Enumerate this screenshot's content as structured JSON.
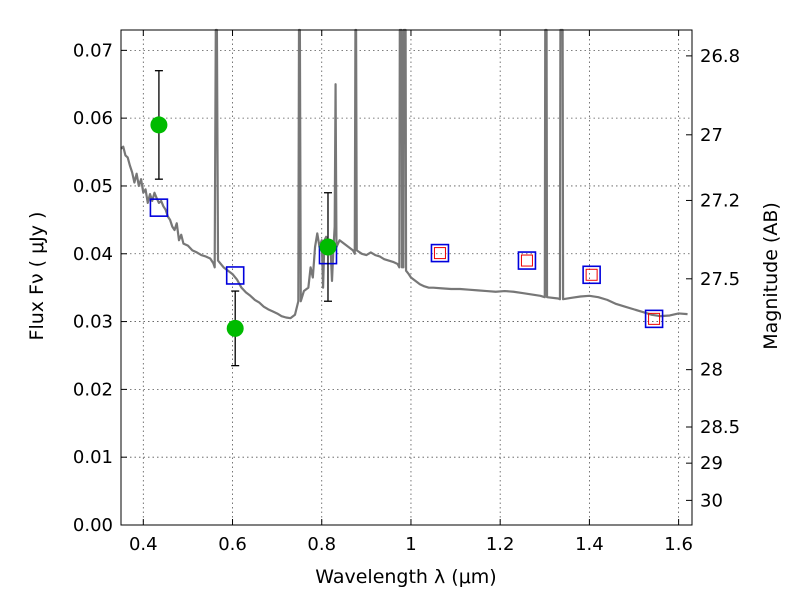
{
  "chart_data": {
    "type": "scatter",
    "xlabel": "Wavelength  λ (μm)",
    "ylabel": "Flux  Fν  ( μJy )",
    "ylabel_right": "Magnitude (AB)",
    "xlim": [
      0.35,
      1.63
    ],
    "ylim": [
      0.0,
      0.073
    ],
    "grid": true,
    "x_ticks": [
      0.4,
      0.6,
      0.8,
      1.0,
      1.2,
      1.4,
      1.6
    ],
    "x_tick_labels": [
      "0.4",
      "0.6",
      "0.8",
      "1",
      "1.2",
      "1.4",
      "1.6"
    ],
    "y_ticks": [
      0.0,
      0.01,
      0.02,
      0.03,
      0.04,
      0.05,
      0.06,
      0.07
    ],
    "y_tick_labels": [
      "0.00",
      "0.01",
      "0.02",
      "0.03",
      "0.04",
      "0.05",
      "0.06",
      "0.07"
    ],
    "right_ticks": [
      {
        "mag": 26.8,
        "label": "26.8"
      },
      {
        "mag": 27.0,
        "label": "27"
      },
      {
        "mag": 27.2,
        "label": "27.2"
      },
      {
        "mag": 27.5,
        "label": "27.5"
      },
      {
        "mag": 28.0,
        "label": "28"
      },
      {
        "mag": 28.5,
        "label": "28.5"
      },
      {
        "mag": 29.0,
        "label": "29"
      },
      {
        "mag": 30.0,
        "label": "30"
      }
    ],
    "colors": {
      "model": "#777777",
      "observed": "#00bb00",
      "errorbar": "#000000",
      "model_band": "#0000dd",
      "model_band_inner": "#ee0000"
    },
    "observed_points": [
      {
        "x": 0.435,
        "y": 0.059,
        "yerr_low": 0.051,
        "yerr_high": 0.067
      },
      {
        "x": 0.606,
        "y": 0.029,
        "yerr_low": 0.0235,
        "yerr_high": 0.0345
      },
      {
        "x": 0.814,
        "y": 0.041,
        "yerr_low": 0.033,
        "yerr_high": 0.049
      }
    ],
    "model_band_points": [
      {
        "x": 0.435,
        "y": 0.0468,
        "inner": false
      },
      {
        "x": 0.606,
        "y": 0.0368,
        "inner": false
      },
      {
        "x": 0.814,
        "y": 0.0398,
        "inner": false
      },
      {
        "x": 1.065,
        "y": 0.0401,
        "inner": true
      },
      {
        "x": 1.26,
        "y": 0.039,
        "inner": true
      },
      {
        "x": 1.405,
        "y": 0.0369,
        "inner": true
      },
      {
        "x": 1.545,
        "y": 0.0304,
        "inner": true
      }
    ],
    "model_spectrum": [
      [
        0.35,
        0.0555
      ],
      [
        0.355,
        0.0558
      ],
      [
        0.36,
        0.0545
      ],
      [
        0.365,
        0.0542
      ],
      [
        0.37,
        0.053
      ],
      [
        0.375,
        0.052
      ],
      [
        0.38,
        0.0505
      ],
      [
        0.385,
        0.0518
      ],
      [
        0.39,
        0.05
      ],
      [
        0.395,
        0.051
      ],
      [
        0.4,
        0.049
      ],
      [
        0.405,
        0.0495
      ],
      [
        0.41,
        0.0475
      ],
      [
        0.415,
        0.0488
      ],
      [
        0.42,
        0.0478
      ],
      [
        0.425,
        0.049
      ],
      [
        0.43,
        0.0482
      ],
      [
        0.435,
        0.0475
      ],
      [
        0.44,
        0.0478
      ],
      [
        0.445,
        0.047
      ],
      [
        0.45,
        0.0465
      ],
      [
        0.455,
        0.0455
      ],
      [
        0.46,
        0.045
      ],
      [
        0.465,
        0.044
      ],
      [
        0.47,
        0.0435
      ],
      [
        0.475,
        0.0445
      ],
      [
        0.48,
        0.042
      ],
      [
        0.485,
        0.0428
      ],
      [
        0.49,
        0.0415
      ],
      [
        0.5,
        0.0412
      ],
      [
        0.51,
        0.0405
      ],
      [
        0.52,
        0.0402
      ],
      [
        0.53,
        0.0398
      ],
      [
        0.54,
        0.0396
      ],
      [
        0.55,
        0.0393
      ],
      [
        0.557,
        0.0386
      ],
      [
        0.56,
        0.038
      ],
      [
        0.5625,
        0.073
      ],
      [
        0.565,
        0.073
      ],
      [
        0.5675,
        0.039
      ],
      [
        0.57,
        0.0388
      ],
      [
        0.58,
        0.038
      ],
      [
        0.59,
        0.0375
      ],
      [
        0.6,
        0.037
      ],
      [
        0.61,
        0.0362
      ],
      [
        0.62,
        0.035
      ],
      [
        0.63,
        0.0343
      ],
      [
        0.64,
        0.0338
      ],
      [
        0.65,
        0.0332
      ],
      [
        0.66,
        0.0328
      ],
      [
        0.67,
        0.0322
      ],
      [
        0.68,
        0.0318
      ],
      [
        0.69,
        0.0315
      ],
      [
        0.7,
        0.0312
      ],
      [
        0.71,
        0.0308
      ],
      [
        0.72,
        0.0306
      ],
      [
        0.73,
        0.0305
      ],
      [
        0.74,
        0.031
      ],
      [
        0.7475,
        0.033
      ],
      [
        0.749,
        0.073
      ],
      [
        0.751,
        0.073
      ],
      [
        0.753,
        0.033
      ],
      [
        0.76,
        0.0345
      ],
      [
        0.77,
        0.035
      ],
      [
        0.775,
        0.038
      ],
      [
        0.78,
        0.0365
      ],
      [
        0.785,
        0.041
      ],
      [
        0.79,
        0.043
      ],
      [
        0.795,
        0.041
      ],
      [
        0.8,
        0.042
      ],
      [
        0.803,
        0.035
      ],
      [
        0.806,
        0.042
      ],
      [
        0.81,
        0.0425
      ],
      [
        0.815,
        0.041
      ],
      [
        0.82,
        0.0405
      ],
      [
        0.823,
        0.036
      ],
      [
        0.826,
        0.0405
      ],
      [
        0.829,
        0.044
      ],
      [
        0.831,
        0.065
      ],
      [
        0.833,
        0.041
      ],
      [
        0.84,
        0.042
      ],
      [
        0.85,
        0.0415
      ],
      [
        0.86,
        0.041
      ],
      [
        0.87,
        0.0405
      ],
      [
        0.874,
        0.04
      ],
      [
        0.8755,
        0.073
      ],
      [
        0.877,
        0.073
      ],
      [
        0.8785,
        0.0405
      ],
      [
        0.89,
        0.04
      ],
      [
        0.9,
        0.0398
      ],
      [
        0.91,
        0.0402
      ],
      [
        0.92,
        0.0398
      ],
      [
        0.93,
        0.0396
      ],
      [
        0.94,
        0.0392
      ],
      [
        0.95,
        0.039
      ],
      [
        0.96,
        0.0388
      ],
      [
        0.97,
        0.0385
      ],
      [
        0.974,
        0.038
      ],
      [
        0.975,
        0.073
      ],
      [
        0.979,
        0.073
      ],
      [
        0.98,
        0.038
      ],
      [
        0.983,
        0.038
      ],
      [
        0.984,
        0.073
      ],
      [
        0.988,
        0.073
      ],
      [
        0.989,
        0.0375
      ],
      [
        0.995,
        0.037
      ],
      [
        1.0,
        0.0365
      ],
      [
        1.01,
        0.036
      ],
      [
        1.02,
        0.0355
      ],
      [
        1.03,
        0.0352
      ],
      [
        1.04,
        0.035
      ],
      [
        1.05,
        0.035
      ],
      [
        1.07,
        0.0349
      ],
      [
        1.09,
        0.0348
      ],
      [
        1.11,
        0.0348
      ],
      [
        1.13,
        0.0347
      ],
      [
        1.15,
        0.0346
      ],
      [
        1.17,
        0.0345
      ],
      [
        1.19,
        0.0344
      ],
      [
        1.21,
        0.0345
      ],
      [
        1.23,
        0.0344
      ],
      [
        1.25,
        0.0342
      ],
      [
        1.27,
        0.034
      ],
      [
        1.29,
        0.0338
      ],
      [
        1.3,
        0.0336
      ],
      [
        1.301,
        0.073
      ],
      [
        1.304,
        0.073
      ],
      [
        1.305,
        0.0336
      ],
      [
        1.33,
        0.0334
      ],
      [
        1.334,
        0.0333
      ],
      [
        1.335,
        0.073
      ],
      [
        1.34,
        0.073
      ],
      [
        1.341,
        0.0333
      ],
      [
        1.36,
        0.0335
      ],
      [
        1.38,
        0.0337
      ],
      [
        1.4,
        0.0338
      ],
      [
        1.42,
        0.0336
      ],
      [
        1.44,
        0.0332
      ],
      [
        1.46,
        0.0326
      ],
      [
        1.48,
        0.0322
      ],
      [
        1.5,
        0.0318
      ],
      [
        1.52,
        0.0314
      ],
      [
        1.54,
        0.031
      ],
      [
        1.56,
        0.0308
      ],
      [
        1.58,
        0.0309
      ],
      [
        1.6,
        0.0312
      ],
      [
        1.62,
        0.0311
      ]
    ]
  }
}
